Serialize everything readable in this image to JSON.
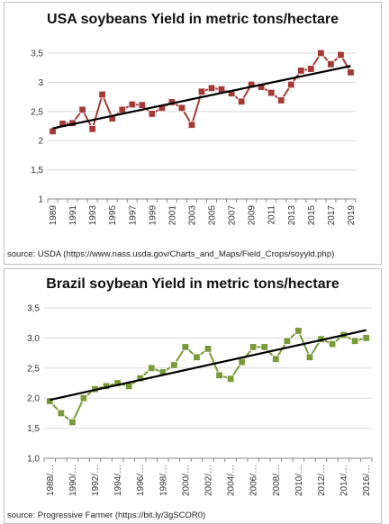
{
  "chart_data": [
    {
      "type": "line",
      "title": "USA soybeans Yield in metric tons/hectare",
      "x": [
        1989,
        1990,
        1991,
        1992,
        1993,
        1994,
        1995,
        1996,
        1997,
        1998,
        1999,
        2000,
        2001,
        2002,
        2003,
        2004,
        2005,
        2006,
        2007,
        2008,
        2009,
        2010,
        2011,
        2012,
        2013,
        2014,
        2015,
        2016,
        2017,
        2018,
        2019
      ],
      "x_tick_labels": [
        "1989",
        "1991",
        "1993",
        "1995",
        "1997",
        "1999",
        "2001",
        "2003",
        "2005",
        "2007",
        "2009",
        "2011",
        "2013",
        "2015",
        "2017",
        "2019"
      ],
      "series": [
        {
          "values": [
            2.16,
            2.29,
            2.3,
            2.53,
            2.2,
            2.79,
            2.38,
            2.53,
            2.62,
            2.61,
            2.46,
            2.56,
            2.66,
            2.56,
            2.27,
            2.84,
            2.9,
            2.88,
            2.81,
            2.67,
            2.96,
            2.92,
            2.82,
            2.69,
            2.96,
            3.2,
            3.23,
            3.5,
            3.31,
            3.47,
            3.17
          ],
          "color": "#a33a36",
          "marker": "square"
        }
      ],
      "trendline": {
        "color": "#000000",
        "start": 2.21,
        "end": 3.28
      },
      "ylim": [
        1,
        3.5
      ],
      "y_ticks": [
        "1",
        "1,5",
        "2",
        "2,5",
        "3",
        "3,5"
      ],
      "grid": true,
      "source": "source: USDA  (https://www.nass.usda.gov/Charts_and_Maps/Field_Crops/soyyld.php)"
    },
    {
      "type": "line",
      "title": "Brazil soybean Yield in metric tons/hectare",
      "x": [
        "1988/…",
        "1989/…",
        "1990/…",
        "1991/…",
        "1992/…",
        "1993/…",
        "1994/…",
        "1995/…",
        "1996/…",
        "1997/…",
        "1998/…",
        "1999/…",
        "2000/…",
        "2001/…",
        "2002/…",
        "2003/…",
        "2004/…",
        "2005/…",
        "2006/…",
        "2007/…",
        "2008/…",
        "2009/…",
        "2010/…",
        "2011/…",
        "2012/…",
        "2013/…",
        "2014/…",
        "2015/…",
        "2016/…"
      ],
      "x_tick_labels": [
        "1988/…",
        "1990/…",
        "1992/…",
        "1994/…",
        "1996/…",
        "1998/…",
        "2000/…",
        "2002/…",
        "2004/…",
        "2006/…",
        "2008/…",
        "2010/…",
        "2012/…",
        "2014/…",
        "2016/…"
      ],
      "series": [
        {
          "values": [
            1.95,
            1.75,
            1.6,
            2.0,
            2.15,
            2.2,
            2.25,
            2.2,
            2.33,
            2.5,
            2.43,
            2.55,
            2.85,
            2.68,
            2.82,
            2.38,
            2.32,
            2.6,
            2.85,
            2.85,
            2.65,
            2.95,
            3.12,
            2.68,
            2.98,
            2.9,
            3.05,
            2.95,
            3.0
          ],
          "color": "#7a9a3a",
          "marker": "square"
        }
      ],
      "trendline": {
        "color": "#000000",
        "start": 1.97,
        "end": 3.13
      },
      "ylim": [
        1.0,
        3.5
      ],
      "y_ticks": [
        "1,0",
        "1,5",
        "2,0",
        "2,5",
        "3,0",
        "3,5"
      ],
      "grid": true,
      "source": "source: Progressive Farmer (https://bit.ly/3gSCOR0)"
    }
  ]
}
